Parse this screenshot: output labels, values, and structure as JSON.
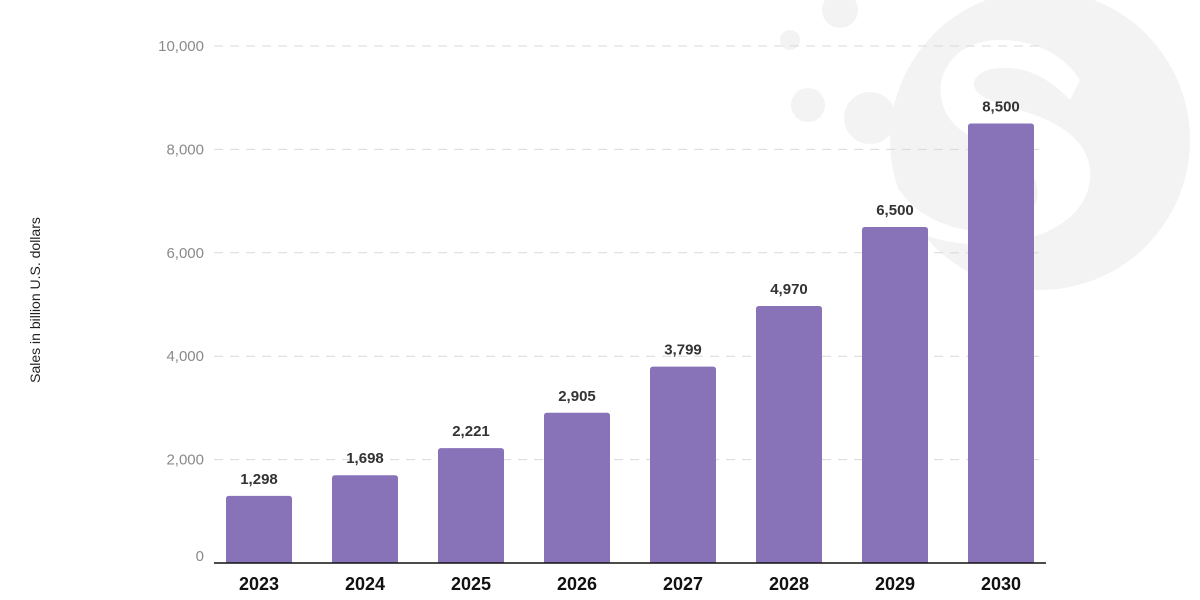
{
  "chart_data": {
    "type": "bar",
    "categories": [
      "2023",
      "2024",
      "2025",
      "2026",
      "2027",
      "2028",
      "2029",
      "2030"
    ],
    "values": [
      1298,
      1698,
      2221,
      2905,
      3799,
      4970,
      6500,
      8500
    ],
    "value_labels": [
      "1,298",
      "1,698",
      "2,221",
      "2,905",
      "3,799",
      "4,970",
      "6,500",
      "8,500"
    ],
    "title": "",
    "xlabel": "",
    "ylabel": "Sales in billion U.S. dollars",
    "ylim": [
      0,
      10000
    ],
    "yticks": [
      0,
      2000,
      4000,
      6000,
      8000,
      10000
    ],
    "ytick_labels": [
      "0",
      "2,000",
      "4,000",
      "6,000",
      "8,000",
      "10,000"
    ],
    "grid": true,
    "legend": "none",
    "colors": {
      "bar": "#8872b8",
      "grid": "#d9d9d9",
      "axis": "#111111",
      "tick_text": "#8a8a8a",
      "value_text": "#333333",
      "category_text": "#111111",
      "watermark": "#f2f2f2"
    }
  }
}
